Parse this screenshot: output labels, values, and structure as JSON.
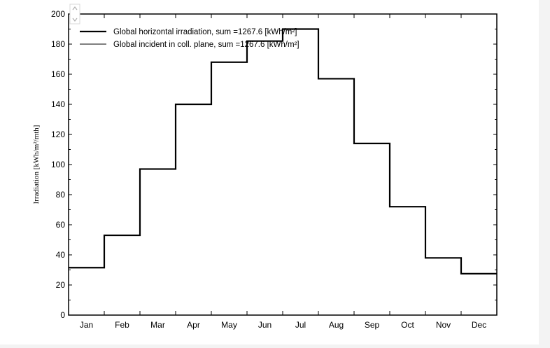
{
  "chart_data": {
    "type": "line",
    "step": true,
    "categories": [
      "Jan",
      "Feb",
      "Mar",
      "Apr",
      "May",
      "Jun",
      "Jul",
      "Aug",
      "Sep",
      "Oct",
      "Nov",
      "Dec"
    ],
    "ylabel": "Irradiation [kWh/m²/mth]",
    "ylim": [
      0,
      200
    ],
    "yticks": [
      0,
      20,
      40,
      60,
      80,
      100,
      120,
      140,
      160,
      180,
      200
    ],
    "legend_position": "top-left",
    "grid": false,
    "series": [
      {
        "name": "Global horizontal irradiation, sum =1267.6 [kWh/m²]",
        "line_weight": "thick",
        "color": "#000000",
        "values": [
          31.5,
          53,
          97,
          140,
          168,
          182,
          190,
          157,
          114,
          72,
          38,
          27.5
        ]
      },
      {
        "name": "Global incident in coll. plane, sum =1267.6 [kWh/m²]",
        "line_weight": "thin",
        "color": "#000000",
        "values": [
          31.5,
          53,
          97,
          140,
          168,
          182,
          190,
          157,
          114,
          72,
          38,
          27.5
        ]
      }
    ]
  },
  "scroll_icon": "scroll-up-down-icon"
}
